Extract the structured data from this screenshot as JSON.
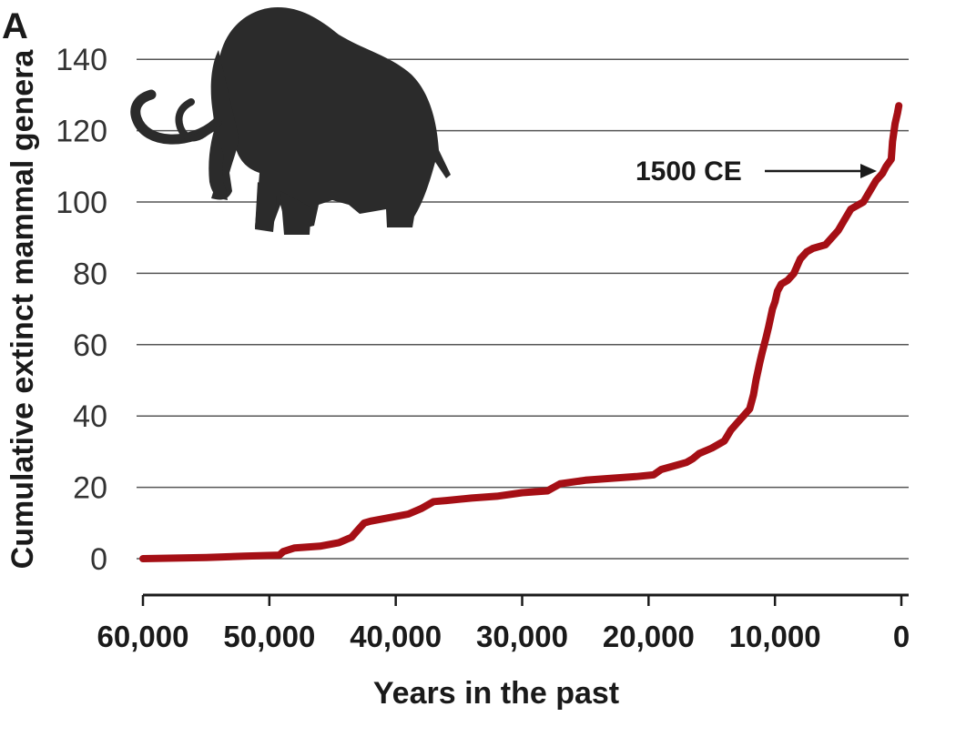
{
  "panel_label": "A",
  "colors": {
    "series": "#a50f15",
    "grid": "#555555",
    "axis": "#1a1a1a",
    "silhouette": "#2b2b2b"
  },
  "icon": "woolly-mammoth-silhouette",
  "chart_data": {
    "type": "line",
    "xlabel": "Years in the past",
    "ylabel": "Cumulative extinct mammal genera",
    "xlim": [
      60000,
      0
    ],
    "ylim": [
      -10,
      150
    ],
    "x_reversed": true,
    "grid": true,
    "x_ticks": [
      60000,
      50000,
      40000,
      30000,
      20000,
      10000,
      0
    ],
    "x_tick_labels": [
      "60,000",
      "50,000",
      "40,000",
      "30,000",
      "20,000",
      "10,000",
      "0"
    ],
    "y_ticks": [
      0,
      20,
      40,
      60,
      80,
      100,
      120,
      140
    ],
    "y_tick_labels": [
      "0",
      "20",
      "40",
      "60",
      "80",
      "100",
      "120",
      "140"
    ],
    "series": [
      {
        "x": [
          60000,
          55000,
          52000,
          49200,
          48900,
          48000,
          46000,
          44500,
          43500,
          43000,
          42500,
          42000,
          40500,
          39000,
          38000,
          37000,
          36000,
          34000,
          32000,
          30000,
          28000,
          27500,
          27000,
          25000,
          23000,
          21000,
          19600,
          19000,
          18000,
          17000,
          16500,
          16000,
          15000,
          14000,
          13500,
          13000,
          12500,
          12000,
          11700,
          11500,
          11200,
          11000,
          10700,
          10500,
          10200,
          10000,
          9800,
          9500,
          9000,
          8500,
          8000,
          7500,
          7000,
          6000,
          5000,
          4500,
          4000,
          3500,
          3000,
          2500,
          2000,
          1500,
          1200,
          1000,
          800,
          700,
          500,
          300,
          200
        ],
        "y": [
          0,
          0.3,
          0.7,
          1,
          2,
          3,
          3.5,
          4.5,
          6,
          8,
          10,
          10.5,
          11.5,
          12.5,
          14,
          16,
          16.3,
          17,
          17.5,
          18.5,
          19,
          20,
          21,
          22,
          22.5,
          23,
          23.5,
          25,
          26,
          27,
          28,
          29.5,
          31,
          33,
          36,
          38,
          40,
          42,
          46,
          50,
          55,
          58,
          62,
          65,
          70,
          72,
          75,
          77,
          78,
          80,
          84,
          86,
          87,
          88,
          92,
          95,
          98,
          99,
          100,
          103,
          106,
          108,
          110,
          111,
          112,
          117,
          122,
          125,
          127
        ]
      }
    ],
    "annotations": [
      {
        "text": "1500 CE",
        "x": 500,
        "y": 108
      }
    ]
  }
}
